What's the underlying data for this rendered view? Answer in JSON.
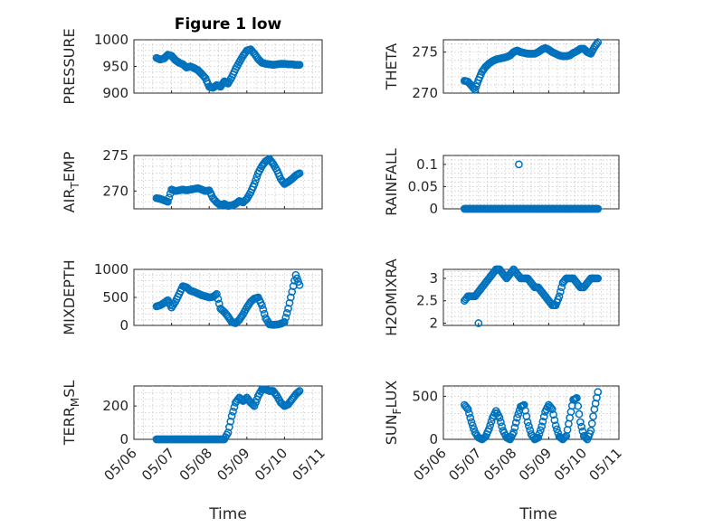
{
  "title": "Figure 1 low",
  "xlabel": "Time",
  "x_ticks": [
    "05/06",
    "05/07",
    "05/08",
    "05/09",
    "05/10",
    "05/11"
  ],
  "marker_color": "#0072BD",
  "chart_data": [
    {
      "type": "scatter",
      "ylabel": "PRESSURE",
      "ylim": [
        900,
        1000
      ],
      "yticks": [
        900,
        950,
        1000
      ],
      "grid": true,
      "x": [
        0.6,
        0.7,
        0.8,
        0.9,
        1.0,
        1.1,
        1.2,
        1.3,
        1.4,
        1.5,
        1.6,
        1.7,
        1.8,
        1.9,
        2.0,
        2.1,
        2.2,
        2.3,
        2.4,
        2.5,
        2.6,
        2.7,
        2.8,
        2.9,
        3.0,
        3.1,
        3.2,
        3.3,
        3.4,
        3.5,
        3.6,
        3.7,
        3.8,
        3.9,
        4.0,
        4.1,
        4.2,
        4.3,
        4.4
      ],
      "values": [
        966,
        963,
        965,
        972,
        970,
        962,
        957,
        954,
        948,
        950,
        947,
        943,
        936,
        928,
        912,
        910,
        915,
        912,
        922,
        918,
        930,
        945,
        958,
        970,
        980,
        982,
        974,
        964,
        957,
        955,
        954,
        953,
        954,
        955,
        955,
        954,
        954,
        953,
        953
      ]
    },
    {
      "type": "scatter",
      "ylabel": "THETA",
      "ylim": [
        270,
        276.5
      ],
      "yticks": [
        270,
        275
      ],
      "grid": true,
      "x": [
        0.6,
        0.7,
        0.8,
        0.9,
        1.0,
        1.1,
        1.2,
        1.3,
        1.4,
        1.5,
        1.6,
        1.7,
        1.8,
        1.9,
        2.0,
        2.1,
        2.2,
        2.3,
        2.4,
        2.5,
        2.6,
        2.7,
        2.8,
        2.9,
        3.0,
        3.1,
        3.2,
        3.3,
        3.4,
        3.5,
        3.6,
        3.7,
        3.8,
        3.9,
        4.0,
        4.1,
        4.2,
        4.3,
        4.4
      ],
      "values": [
        271.5,
        271.4,
        270.9,
        270.4,
        271.6,
        272.6,
        273.2,
        273.6,
        273.9,
        274.1,
        274.2,
        274.3,
        274.4,
        274.6,
        275.0,
        275.2,
        275.0,
        274.9,
        274.8,
        274.8,
        274.8,
        275.0,
        275.3,
        275.5,
        275.3,
        275.0,
        274.8,
        274.6,
        274.5,
        274.5,
        274.6,
        274.9,
        275.1,
        275.4,
        275.4,
        275.0,
        274.8,
        275.6,
        276.2
      ]
    },
    {
      "type": "scatter",
      "ylabel": "AIR_TEMP",
      "ylim": [
        267.5,
        275
      ],
      "yticks": [
        270,
        275
      ],
      "grid": true,
      "x": [
        0.6,
        0.7,
        0.8,
        0.9,
        1.0,
        1.1,
        1.2,
        1.3,
        1.4,
        1.5,
        1.6,
        1.7,
        1.8,
        1.9,
        2.0,
        2.1,
        2.2,
        2.3,
        2.4,
        2.5,
        2.6,
        2.7,
        2.8,
        2.9,
        3.0,
        3.1,
        3.2,
        3.3,
        3.4,
        3.5,
        3.6,
        3.7,
        3.8,
        3.9,
        4.0,
        4.1,
        4.2,
        4.3,
        4.4
      ],
      "values": [
        269.0,
        268.9,
        268.7,
        268.5,
        270.2,
        270.0,
        270.1,
        270.2,
        270.1,
        270.2,
        270.3,
        270.4,
        270.2,
        270.0,
        270.1,
        269.0,
        268.4,
        268.0,
        268.2,
        267.9,
        268.0,
        268.2,
        268.6,
        268.4,
        268.9,
        269.8,
        271.0,
        272.5,
        273.5,
        274.2,
        274.5,
        273.8,
        272.9,
        271.7,
        271.0,
        271.3,
        271.7,
        272.2,
        272.5
      ]
    },
    {
      "type": "scatter",
      "ylabel": "RAINFALL",
      "ylim": [
        0,
        0.12
      ],
      "yticks": [
        0,
        0.05,
        0.1
      ],
      "grid": true,
      "x": [
        0.6,
        0.7,
        0.8,
        0.9,
        1.0,
        1.1,
        1.2,
        1.3,
        1.4,
        1.5,
        1.6,
        1.7,
        1.8,
        1.9,
        2.0,
        2.1,
        2.2,
        2.3,
        2.4,
        2.5,
        2.6,
        2.7,
        2.8,
        2.9,
        3.0,
        3.1,
        3.2,
        3.3,
        3.4,
        3.5,
        3.6,
        3.7,
        3.8,
        3.9,
        4.0,
        4.1,
        4.2,
        4.3,
        4.4,
        2.15
      ],
      "values": [
        0,
        0,
        0,
        0,
        0,
        0,
        0,
        0,
        0,
        0,
        0,
        0,
        0,
        0,
        0,
        0,
        0,
        0,
        0,
        0,
        0,
        0,
        0,
        0,
        0,
        0,
        0,
        0,
        0,
        0,
        0,
        0,
        0,
        0,
        0,
        0,
        0,
        0,
        0,
        0.1
      ]
    },
    {
      "type": "scatter",
      "ylabel": "MIXDEPTH",
      "ylim": [
        0,
        1000
      ],
      "yticks": [
        0,
        500,
        1000
      ],
      "grid": true,
      "x": [
        0.6,
        0.7,
        0.8,
        0.9,
        1.0,
        1.1,
        1.2,
        1.3,
        1.4,
        1.5,
        1.6,
        1.7,
        1.8,
        1.9,
        2.0,
        2.1,
        2.2,
        2.3,
        2.4,
        2.5,
        2.6,
        2.7,
        2.8,
        2.9,
        3.0,
        3.1,
        3.2,
        3.3,
        3.4,
        3.5,
        3.6,
        3.7,
        3.8,
        3.9,
        4.0,
        4.1,
        4.2,
        4.3,
        4.4
      ],
      "values": [
        340,
        360,
        400,
        450,
        320,
        420,
        560,
        700,
        680,
        620,
        600,
        570,
        540,
        520,
        500,
        510,
        560,
        300,
        240,
        160,
        60,
        40,
        100,
        200,
        320,
        420,
        480,
        500,
        360,
        130,
        20,
        10,
        15,
        30,
        60,
        300,
        600,
        900,
        720
      ]
    },
    {
      "type": "scatter",
      "ylabel": "H2OMIXRA",
      "ylim": [
        1.95,
        3.2
      ],
      "yticks": [
        2,
        2.5,
        3
      ],
      "grid": true,
      "x": [
        0.6,
        0.7,
        0.8,
        0.9,
        1.0,
        1.1,
        1.2,
        1.3,
        1.4,
        1.5,
        1.6,
        1.7,
        1.8,
        1.9,
        2.0,
        2.1,
        2.2,
        2.3,
        2.4,
        2.5,
        2.6,
        2.7,
        2.8,
        2.9,
        3.0,
        3.1,
        3.2,
        3.3,
        3.4,
        3.5,
        3.6,
        3.7,
        3.8,
        3.9,
        4.0,
        4.1,
        4.2,
        4.3,
        4.4,
        1.0
      ],
      "values": [
        2.5,
        2.6,
        2.6,
        2.6,
        2.7,
        2.8,
        2.9,
        3.0,
        3.1,
        3.2,
        3.2,
        3.1,
        3.0,
        3.1,
        3.2,
        3.1,
        3.0,
        3.0,
        3.0,
        2.9,
        2.8,
        2.8,
        2.7,
        2.6,
        2.5,
        2.4,
        2.4,
        2.6,
        2.9,
        3.0,
        3.0,
        3.0,
        2.9,
        2.8,
        2.8,
        2.9,
        3.0,
        3.0,
        3.0,
        2.0
      ]
    },
    {
      "type": "scatter",
      "ylabel": "TERR_MSL",
      "ylim": [
        0,
        320
      ],
      "yticks": [
        0,
        200
      ],
      "grid": true,
      "x": [
        0.6,
        0.7,
        0.8,
        0.9,
        1.0,
        1.1,
        1.2,
        1.3,
        1.4,
        1.5,
        1.6,
        1.7,
        1.8,
        1.9,
        2.0,
        2.1,
        2.2,
        2.3,
        2.4,
        2.5,
        2.6,
        2.7,
        2.8,
        2.9,
        3.0,
        3.1,
        3.2,
        3.3,
        3.4,
        3.5,
        3.6,
        3.7,
        3.8,
        3.9,
        4.0,
        4.1,
        4.2,
        4.3,
        4.4
      ],
      "values": [
        0,
        0,
        0,
        0,
        0,
        0,
        0,
        0,
        0,
        0,
        0,
        0,
        0,
        0,
        0,
        0,
        0,
        0,
        0,
        40,
        140,
        220,
        250,
        230,
        250,
        220,
        200,
        260,
        300,
        300,
        290,
        290,
        260,
        220,
        200,
        210,
        240,
        270,
        290
      ]
    },
    {
      "type": "scatter",
      "ylabel": "SUN_FLUX",
      "ylim": [
        0,
        620
      ],
      "yticks": [
        0,
        500
      ],
      "grid": true,
      "x": [
        0.6,
        0.7,
        0.8,
        0.9,
        1.0,
        1.1,
        1.2,
        1.3,
        1.4,
        1.5,
        1.6,
        1.7,
        1.8,
        1.9,
        2.0,
        2.1,
        2.2,
        2.3,
        2.4,
        2.5,
        2.6,
        2.7,
        2.8,
        2.9,
        3.0,
        3.1,
        3.2,
        3.3,
        3.4,
        3.5,
        3.6,
        3.7,
        3.8,
        3.9,
        4.0,
        4.1,
        4.2,
        4.3,
        4.4
      ],
      "values": [
        400,
        350,
        200,
        80,
        20,
        0,
        30,
        120,
        250,
        330,
        250,
        100,
        20,
        0,
        80,
        250,
        380,
        400,
        200,
        60,
        0,
        20,
        150,
        320,
        400,
        350,
        160,
        30,
        0,
        40,
        250,
        460,
        480,
        200,
        40,
        0,
        100,
        350,
        550
      ]
    }
  ]
}
